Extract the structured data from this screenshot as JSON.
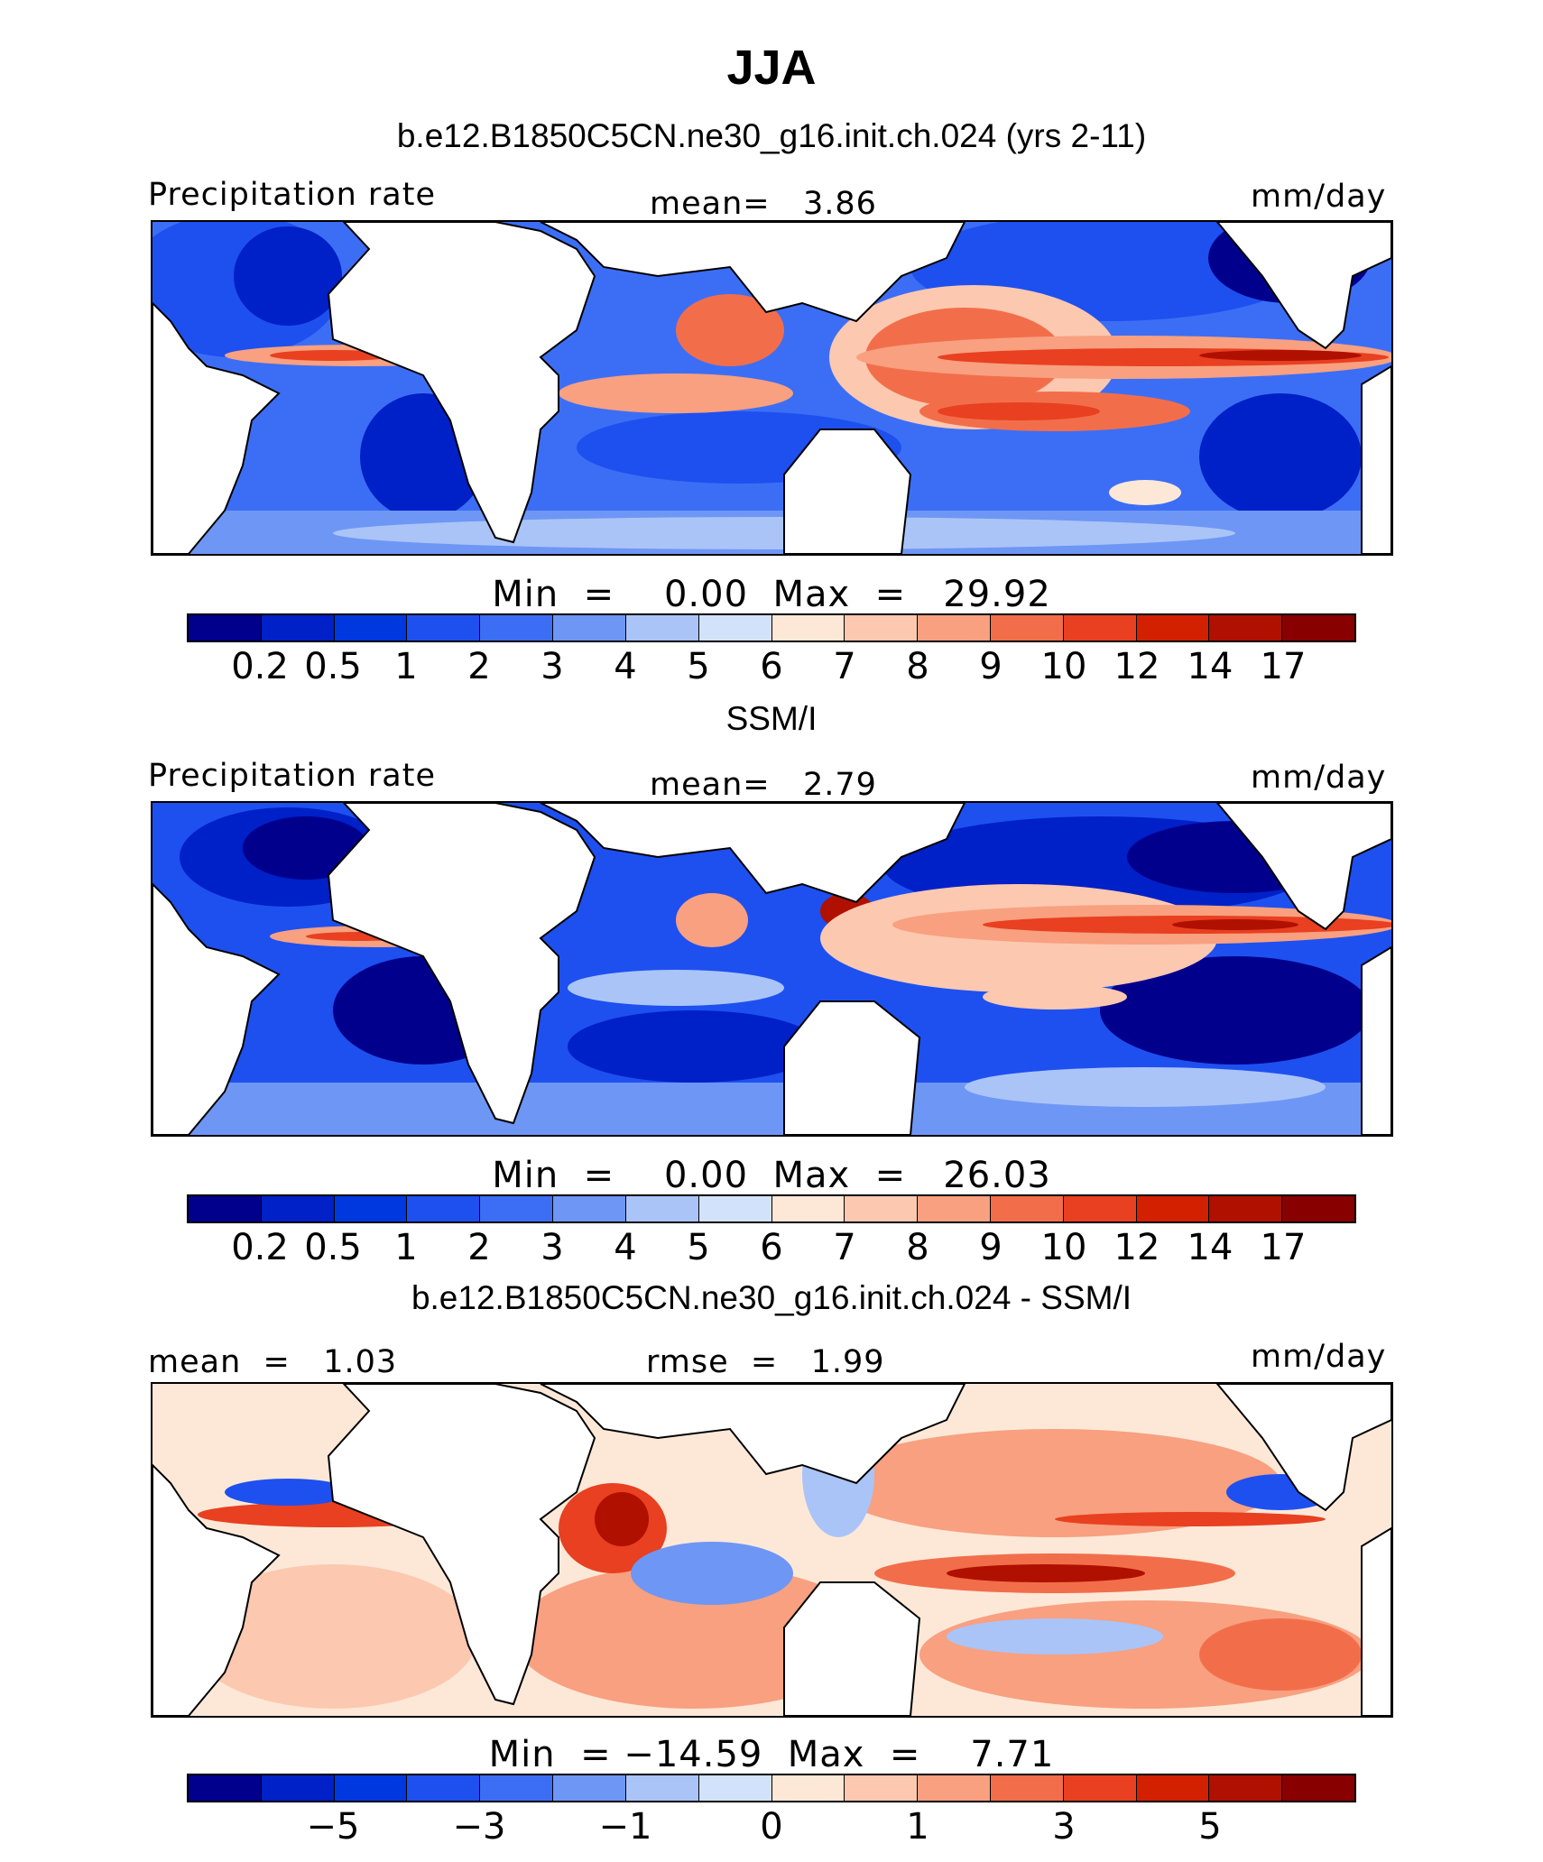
{
  "title": "JJA",
  "palette": [
    "#00008c",
    "#0020c8",
    "#0038e0",
    "#1e50f0",
    "#3c6ef5",
    "#6e96f5",
    "#aac4f8",
    "#d2e2fa",
    "#fde8d8",
    "#fcc8b0",
    "#f8a080",
    "#f26e4a",
    "#e84020",
    "#d22000",
    "#b01000",
    "#880000"
  ],
  "panels": [
    {
      "title": "b.e12.B1850C5CN.ne30_g16.init.ch.024 (yrs 2-11)",
      "left_label": "Precipitation rate",
      "center_label": "mean=   3.86",
      "right_label": "mm/day",
      "minmax": "Min  =    0.00  Max  =   29.92",
      "ticks": [
        "0.2",
        "0.5",
        "1",
        "2",
        "3",
        "4",
        "5",
        "6",
        "7",
        "8",
        "9",
        "10",
        "12",
        "14",
        "17"
      ]
    },
    {
      "title": "SSM/I",
      "left_label": "Precipitation rate",
      "center_label": "mean=   2.79",
      "right_label": "mm/day",
      "minmax": "Min  =    0.00  Max  =   26.03",
      "ticks": [
        "0.2",
        "0.5",
        "1",
        "2",
        "3",
        "4",
        "5",
        "6",
        "7",
        "8",
        "9",
        "10",
        "12",
        "14",
        "17"
      ]
    },
    {
      "title": "b.e12.B1850C5CN.ne30_g16.init.ch.024 - SSM/I",
      "left_label": "mean  =   1.03",
      "center_label": "rmse  =   1.99",
      "right_label": "mm/day",
      "minmax": "Min  = −14.59  Max  =    7.71",
      "ticks": [
        "−5",
        "−3",
        "−1",
        "0",
        "1",
        "3",
        "5"
      ]
    }
  ],
  "chart_data": [
    {
      "type": "heatmap",
      "title": "b.e12.B1850C5CN.ne30_g16.init.ch.024 (yrs 2-11)",
      "variable": "Precipitation rate",
      "units": "mm/day",
      "mean": 3.86,
      "min": 0.0,
      "max": 29.92,
      "contour_levels": [
        0.2,
        0.5,
        1,
        2,
        3,
        4,
        5,
        6,
        7,
        8,
        9,
        10,
        12,
        14,
        17
      ]
    },
    {
      "type": "heatmap",
      "title": "SSM/I",
      "variable": "Precipitation rate",
      "units": "mm/day",
      "mean": 2.79,
      "min": 0.0,
      "max": 26.03,
      "contour_levels": [
        0.2,
        0.5,
        1,
        2,
        3,
        4,
        5,
        6,
        7,
        8,
        9,
        10,
        12,
        14,
        17
      ]
    },
    {
      "type": "heatmap",
      "title": "b.e12.B1850C5CN.ne30_g16.init.ch.024 - SSM/I",
      "units": "mm/day",
      "mean": 1.03,
      "rmse": 1.99,
      "min": -14.59,
      "max": 7.71,
      "tick_labels": [
        -5,
        -3,
        -1,
        0,
        1,
        3,
        5
      ]
    }
  ]
}
